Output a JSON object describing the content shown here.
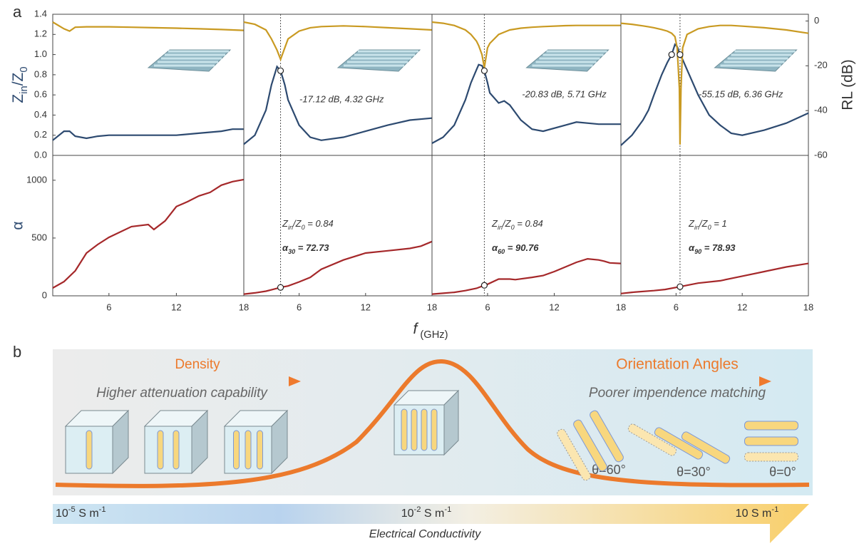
{
  "figure": {
    "panel_labels": [
      "a",
      "b"
    ],
    "xlabel": [
      "f",
      " (GHz)"
    ]
  },
  "chart_data": [
    {
      "type": "line",
      "xlim": [
        1,
        18
      ],
      "ylim": [
        0,
        1.4
      ],
      "y2lim": [
        -60,
        3
      ],
      "ylabel": [
        "Z",
        "in",
        "/Z",
        "0"
      ],
      "yticks": [
        {
          "value": 0,
          "label": "0.0"
        },
        0.2,
        0.4,
        0.6,
        0.8,
        {
          "value": 1,
          "label": "1.0"
        },
        1.2,
        1.4
      ],
      "x": [
        1,
        2,
        2.5,
        3,
        4,
        5,
        6,
        8,
        10,
        12,
        14,
        16,
        17,
        18
      ],
      "series": [
        {
          "color": "#2d4a70",
          "values": [
            0.15,
            0.24,
            0.24,
            0.19,
            0.17,
            0.19,
            0.2,
            0.2,
            0.2,
            0.2,
            0.22,
            0.24,
            0.26,
            0.26
          ]
        },
        {
          "color": "#c99a22",
          "axis": "y2",
          "values": [
            -0.5,
            -3.5,
            -4.5,
            -2.8,
            -2.6,
            -2.6,
            -2.6,
            -2.8,
            -3,
            -3.2,
            -3.5,
            -3.8,
            -4,
            -4.2
          ]
        }
      ]
    },
    {
      "type": "line",
      "xlim": [
        1,
        18
      ],
      "ylim": [
        0,
        1.4
      ],
      "y2lim": [
        -60,
        3
      ],
      "x": [
        1,
        2,
        3,
        3.5,
        4,
        4.32,
        4.7,
        5,
        6,
        7,
        8,
        10,
        12,
        14,
        16,
        18
      ],
      "series": [
        {
          "color": "#2d4a70",
          "values": [
            0.11,
            0.2,
            0.45,
            0.7,
            0.88,
            0.84,
            0.7,
            0.55,
            0.3,
            0.18,
            0.15,
            0.18,
            0.24,
            0.3,
            0.35,
            0.37
          ]
        },
        {
          "color": "#c99a22",
          "axis": "y2",
          "values": [
            -0.5,
            -1.5,
            -4,
            -8,
            -13,
            -17.12,
            -12,
            -8,
            -4.5,
            -3,
            -2.5,
            -2.2,
            -2.5,
            -3,
            -3.5,
            -4
          ]
        }
      ],
      "vline": 4.32,
      "markers": [
        {
          "x": 4.32,
          "y": 0.84
        }
      ],
      "annotation": "-17.12 dB, 4.32 GHz"
    },
    {
      "type": "line",
      "xlim": [
        1,
        18
      ],
      "ylim": [
        0,
        1.4
      ],
      "y2lim": [
        -60,
        3
      ],
      "x": [
        1,
        2,
        3,
        4,
        4.5,
        5,
        5.2,
        5.5,
        5.71,
        6,
        6.2,
        7,
        7.5,
        8,
        9,
        10,
        11,
        13,
        14,
        16,
        18
      ],
      "series": [
        {
          "color": "#2d4a70",
          "values": [
            0.12,
            0.18,
            0.3,
            0.55,
            0.72,
            0.85,
            0.9,
            0.89,
            0.84,
            0.72,
            0.62,
            0.52,
            0.54,
            0.5,
            0.35,
            0.26,
            0.24,
            0.3,
            0.33,
            0.31,
            0.31
          ]
        },
        {
          "color": "#c99a22",
          "axis": "y2",
          "values": [
            -0.5,
            -1,
            -2,
            -4,
            -6,
            -9,
            -11,
            -15,
            -20.83,
            -12,
            -10,
            -6,
            -5,
            -4,
            -3.2,
            -2.8,
            -2.5,
            -2.1,
            -2,
            -2,
            -2
          ]
        }
      ],
      "vline": 5.71,
      "markers": [
        {
          "x": 5.71,
          "y": 0.84
        }
      ],
      "annotation": "-20.83 dB, 5.71 GHz"
    },
    {
      "type": "line",
      "xlim": [
        1,
        18
      ],
      "ylim": [
        0,
        1.4
      ],
      "y2lim": [
        -60,
        3
      ],
      "y2label": "RL (dB)",
      "y2ticks": [
        0,
        -20,
        -40,
        -60
      ],
      "x": [
        1,
        2,
        3,
        3.5,
        4,
        4.7,
        5.2,
        5.6,
        5.9,
        6.1,
        6.3,
        6.36,
        6.45,
        6.6,
        7,
        8,
        9,
        10,
        11,
        12,
        14,
        16,
        18
      ],
      "series": [
        {
          "color": "#2d4a70",
          "values": [
            0.1,
            0.2,
            0.35,
            0.45,
            0.6,
            0.8,
            0.92,
            1,
            1.1,
            1.08,
            1.02,
            1,
            0.98,
            0.95,
            0.85,
            0.6,
            0.4,
            0.3,
            0.22,
            0.2,
            0.25,
            0.32,
            0.42
          ]
        },
        {
          "color": "#c99a22",
          "axis": "y2",
          "values": [
            -1,
            -1.5,
            -2.2,
            -2.6,
            -3,
            -3.8,
            -4.5,
            -5.5,
            -7,
            -12,
            -30,
            -55.15,
            -30,
            -12,
            -6,
            -3.5,
            -2.5,
            -2,
            -2,
            -2.3,
            -3,
            -4,
            -5.5
          ]
        }
      ],
      "vline": 6.36,
      "markers": [
        {
          "x": 5.6,
          "y": 1
        },
        {
          "x": 6.36,
          "y": 1
        }
      ],
      "annotation": "-55.15 dB, 6.36 GHz"
    },
    {
      "type": "line",
      "xlim": [
        1,
        18
      ],
      "ylim": [
        0,
        1215
      ],
      "ylabel": "α",
      "yticks": [
        0,
        500,
        1000
      ],
      "xticks": [
        6,
        12,
        18
      ],
      "x": [
        1,
        2,
        3,
        4,
        5,
        6,
        8,
        9.5,
        10,
        11,
        12,
        13,
        14,
        15,
        16,
        17,
        18
      ],
      "series": [
        {
          "color": "#a5282a",
          "values": [
            68,
            123,
            216,
            370,
            444,
            506,
            599,
            617,
            574,
            648,
            772,
            815,
            864,
            895,
            957,
            988,
            1006
          ]
        }
      ]
    },
    {
      "type": "line",
      "xlim": [
        1,
        18
      ],
      "ylim": [
        0,
        1215
      ],
      "xticks": [
        6,
        12,
        18
      ],
      "x": [
        1,
        2,
        3,
        4.32,
        5,
        6,
        7,
        8,
        10,
        12,
        14,
        16,
        17,
        18
      ],
      "series": [
        {
          "color": "#a5282a",
          "values": [
            15,
            25,
            40,
            72.73,
            85,
            120,
            160,
            230,
            310,
            370,
            390,
            410,
            430,
            470
          ]
        }
      ],
      "vline": 4.32,
      "markers": [
        {
          "x": 4.32,
          "y": 72.73
        }
      ],
      "annotations": [
        [
          "Z",
          "in",
          "/Z",
          "0",
          " = 0.84"
        ],
        [
          "α",
          "30",
          " = 72.73"
        ]
      ]
    },
    {
      "type": "line",
      "xlim": [
        1,
        18
      ],
      "ylim": [
        0,
        1215
      ],
      "xticks": [
        6,
        12,
        18
      ],
      "x": [
        1,
        2,
        3,
        4,
        5,
        5.71,
        6,
        7,
        8,
        8.5,
        10,
        11,
        12,
        13,
        14,
        15,
        16,
        16.5,
        17,
        18
      ],
      "series": [
        {
          "color": "#a5282a",
          "values": [
            15,
            22,
            30,
            45,
            65,
            90.76,
            100,
            145,
            145,
            140,
            160,
            175,
            210,
            250,
            290,
            320,
            310,
            300,
            285,
            280
          ]
        }
      ],
      "vline": 5.71,
      "markers": [
        {
          "x": 5.71,
          "y": 90.76
        }
      ],
      "annotations": [
        [
          "Z",
          "in",
          "/Z",
          "0",
          " = 0.84"
        ],
        [
          "α",
          "60",
          " = 90.76"
        ]
      ]
    },
    {
      "type": "line",
      "xlim": [
        1,
        18
      ],
      "ylim": [
        0,
        1215
      ],
      "xticks": [
        6,
        12,
        18
      ],
      "x": [
        1,
        2,
        4,
        5,
        6.36,
        8,
        10,
        12,
        14,
        16,
        18
      ],
      "series": [
        {
          "color": "#a5282a",
          "values": [
            20,
            30,
            45,
            55,
            78.93,
            110,
            130,
            170,
            210,
            250,
            280
          ]
        }
      ],
      "vline": 6.36,
      "markers": [
        {
          "x": 6.36,
          "y": 78.93
        }
      ],
      "annotations": [
        [
          "Z",
          "in",
          "/Z",
          "0",
          " = 1"
        ],
        [
          "α",
          "90",
          " = 78.93"
        ]
      ]
    }
  ],
  "diagram": {
    "left_title": "Density",
    "left_subtitle": "Higher attenuation capability",
    "right_title": "Orientation Angles",
    "right_subtitle": "Poorer impendence matching",
    "angles": [
      "θ=60°",
      "θ=30°",
      "θ=0°"
    ],
    "scale_labels": [
      [
        "10",
        "-5",
        " S m",
        "-1"
      ],
      [
        "10",
        "-2",
        " S m",
        "-1"
      ],
      [
        "10 S m",
        "-1"
      ]
    ],
    "scale_title": "Electrical Conductivity"
  }
}
